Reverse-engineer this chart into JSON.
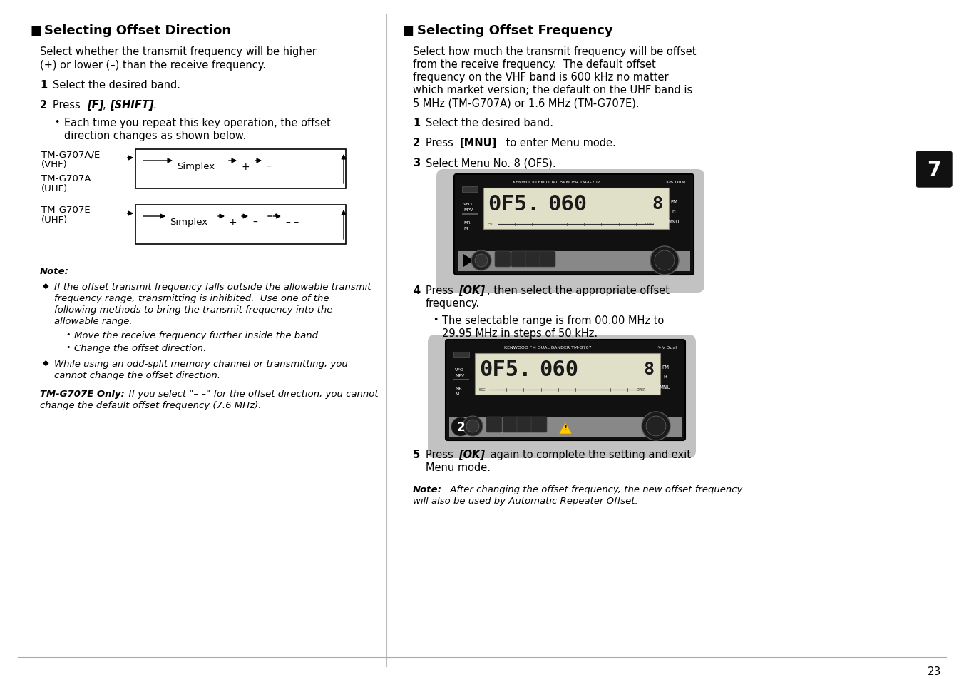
{
  "page_bg": "#ffffff",
  "left_title": "Selecting Offset Direction",
  "right_title": "Selecting Offset Frequency",
  "left_intro1": "Select whether the transmit frequency will be higher",
  "left_intro2": "(+) or lower (–) than the receive frequency.",
  "right_intro1": "Select how much the transmit frequency will be offset",
  "right_intro2": "from the receive frequency.  The default offset",
  "right_intro3": "frequency on the VHF band is 600 kHz no matter",
  "right_intro4": "which market version; the default on the UHF band is",
  "right_intro5": "5 MHz (TM-G707A) or 1.6 MHz (TM-G707E).",
  "page_number": "23",
  "divider_color": "#aaaaaa",
  "text_color": "#000000",
  "radio_bg": "#1a1a1a",
  "radio_outer_bg": "#c8c8c8",
  "display_bg": "#e8e8d0",
  "display_text": "#111111"
}
